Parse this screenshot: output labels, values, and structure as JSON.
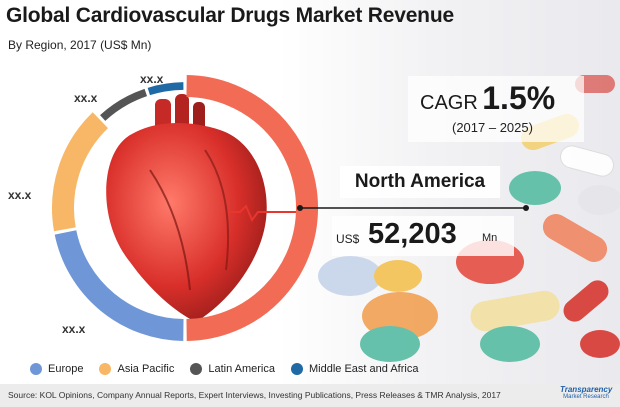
{
  "header": {
    "title": "Global Cardiovascular Drugs Market Revenue",
    "subtitle": "By Region, 2017 (US$ Mn)"
  },
  "chart_data": {
    "type": "pie",
    "style": "donut",
    "categories": [
      "North America",
      "Europe",
      "Asia Pacific",
      "Latin America",
      "Middle East and Africa"
    ],
    "labels": [
      "52,203",
      "xx.x",
      "xx.x",
      "xx.x",
      "xx.x"
    ],
    "values": [
      52203,
      null,
      null,
      null,
      null
    ],
    "ring_fractions": [
      0.5,
      0.22,
      0.16,
      0.07,
      0.05
    ],
    "colors": [
      "#f26b55",
      "#6f97d8",
      "#f7b766",
      "#555555",
      "#1f6aa5"
    ],
    "legend": {
      "placement": "bottom-left",
      "items": [
        {
          "label": "Europe",
          "color": "#6f97d8"
        },
        {
          "label": "Asia Pacific",
          "color": "#f7b766"
        },
        {
          "label": "Latin America",
          "color": "#555555"
        },
        {
          "label": "Middle East and Africa",
          "color": "#1f6aa5"
        }
      ]
    }
  },
  "ring_labels": {
    "europe": "xx.x",
    "asia_pacific": "xx.x",
    "latin_america": "xx.x",
    "mea": "xx.x"
  },
  "cagr": {
    "label": "CAGR",
    "value": "1.5%",
    "period": "(2017 – 2025)"
  },
  "highlight": {
    "region": "North America",
    "currency": "US$",
    "value": "52,203",
    "unit": "Mn"
  },
  "footer": {
    "source": "Source: KOL Opinions, Company Annual Reports, Expert Interviews, Investing Publications, Press Releases & TMR Analysis, 2017",
    "logo_main": "Transparency",
    "logo_sub": "Market Research"
  },
  "icons": [
    "heart-illustration-icon",
    "pills-background-icon",
    "tmr-logo-icon"
  ]
}
